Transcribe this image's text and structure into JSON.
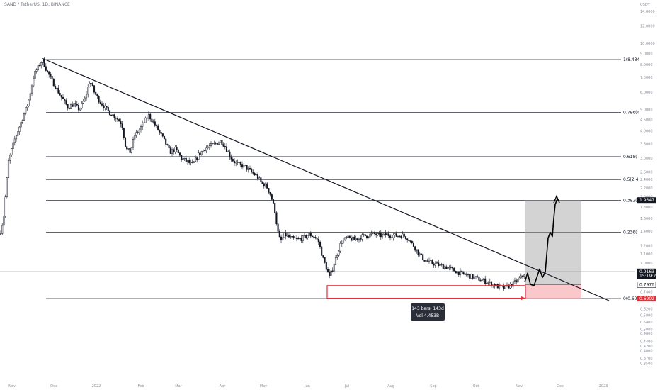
{
  "header": {
    "symbol": "SAND / TetherUS, 1D, BINANCE"
  },
  "axis": {
    "currency": "USDT"
  },
  "chart_data": {
    "type": "candlestick",
    "symbol": "SAND / TetherUS",
    "interval": "1D",
    "exchange": "BINANCE",
    "scale": "log",
    "x_ticks": [
      "Nov",
      "Dec",
      "2022",
      "Feb",
      "Mar",
      "Apr",
      "May",
      "Jun",
      "Jul",
      "Aug",
      "Sep",
      "Oct",
      "Nov",
      "Dec",
      "2023"
    ],
    "y_ticks": [
      "14.0000",
      "12.0000",
      "10.0000",
      "9.0000",
      "8.0000",
      "7.0000",
      "6.0000",
      "5.0000",
      "4.5000",
      "4.0000",
      "3.5000",
      "3.0000",
      "2.6000",
      "2.4000",
      "2.2000",
      "2.0000",
      "1.8000",
      "1.6000",
      "1.4000",
      "1.2000",
      "1.1000",
      "1.0000",
      "0.9000",
      "0.8000",
      "0.7400",
      "0.6800",
      "0.6200",
      "0.5800",
      "0.5400",
      "0.5000",
      "0.4800",
      "0.4400",
      "0.4200",
      "0.4000",
      "0.3700",
      "0.3500"
    ],
    "series": [
      {
        "name": "SAND/USDT",
        "price_path": [
          [
            0,
            1.35
          ],
          [
            5,
            1.6
          ],
          [
            12,
            2.9
          ],
          [
            20,
            3.6
          ],
          [
            30,
            4.4
          ],
          [
            40,
            5.4
          ],
          [
            48,
            7.2
          ],
          [
            55,
            7.9
          ],
          [
            60,
            8.43
          ],
          [
            66,
            7.5
          ],
          [
            72,
            6.9
          ],
          [
            80,
            6.2
          ],
          [
            88,
            5.6
          ],
          [
            96,
            5.1
          ],
          [
            104,
            5.3
          ],
          [
            112,
            5.0
          ],
          [
            120,
            5.6
          ],
          [
            127,
            6.8
          ],
          [
            133,
            6.0
          ],
          [
            140,
            5.5
          ],
          [
            148,
            5.1
          ],
          [
            156,
            4.8
          ],
          [
            164,
            4.6
          ],
          [
            172,
            4.3
          ],
          [
            178,
            3.3
          ],
          [
            184,
            3.2
          ],
          [
            190,
            3.8
          ],
          [
            196,
            4.0
          ],
          [
            204,
            4.4
          ],
          [
            210,
            4.7
          ],
          [
            216,
            4.4
          ],
          [
            222,
            4.1
          ],
          [
            228,
            3.8
          ],
          [
            234,
            3.5
          ],
          [
            240,
            3.2
          ],
          [
            248,
            3.3
          ],
          [
            256,
            3.0
          ],
          [
            264,
            2.9
          ],
          [
            272,
            2.8
          ],
          [
            280,
            3.1
          ],
          [
            288,
            3.3
          ],
          [
            296,
            3.4
          ],
          [
            304,
            3.5
          ],
          [
            312,
            3.6
          ],
          [
            318,
            3.4
          ],
          [
            324,
            3.1
          ],
          [
            330,
            2.9
          ],
          [
            338,
            2.8
          ],
          [
            346,
            2.75
          ],
          [
            354,
            2.6
          ],
          [
            362,
            2.5
          ],
          [
            370,
            2.3
          ],
          [
            376,
            2.25
          ],
          [
            382,
            2.05
          ],
          [
            388,
            1.75
          ],
          [
            392,
            1.4
          ],
          [
            396,
            1.25
          ],
          [
            402,
            1.35
          ],
          [
            410,
            1.3
          ],
          [
            420,
            1.28
          ],
          [
            428,
            1.3
          ],
          [
            436,
            1.35
          ],
          [
            444,
            1.32
          ],
          [
            450,
            1.25
          ],
          [
            456,
            1.05
          ],
          [
            460,
            0.97
          ],
          [
            465,
            0.86
          ],
          [
            470,
            0.95
          ],
          [
            476,
            1.1
          ],
          [
            482,
            1.25
          ],
          [
            490,
            1.3
          ],
          [
            500,
            1.28
          ],
          [
            510,
            1.32
          ],
          [
            520,
            1.34
          ],
          [
            528,
            1.36
          ],
          [
            536,
            1.33
          ],
          [
            544,
            1.35
          ],
          [
            552,
            1.34
          ],
          [
            560,
            1.33
          ],
          [
            568,
            1.34
          ],
          [
            576,
            1.3
          ],
          [
            584,
            1.2
          ],
          [
            592,
            1.1
          ],
          [
            600,
            1.03
          ],
          [
            610,
            1.0
          ],
          [
            620,
            0.98
          ],
          [
            630,
            0.96
          ],
          [
            640,
            0.93
          ],
          [
            650,
            0.9
          ],
          [
            660,
            0.88
          ],
          [
            670,
            0.86
          ],
          [
            680,
            0.84
          ],
          [
            688,
            0.82
          ],
          [
            696,
            0.8
          ],
          [
            704,
            0.78
          ],
          [
            712,
            0.77
          ],
          [
            720,
            0.79
          ],
          [
            728,
            0.82
          ],
          [
            736,
            0.86
          ],
          [
            742,
            0.91
          ]
        ]
      }
    ],
    "fib_levels": [
      {
        "label": "1(8.434",
        "price": 8.434
      },
      {
        "label": "0.786(4",
        "price": 4.85
      },
      {
        "label": "0.618(",
        "price": 3.05
      },
      {
        "label": "0.5(2.4",
        "price": 2.4
      },
      {
        "label": "0.382(",
        "price": 1.93
      },
      {
        "label": "0.236(",
        "price": 1.38
      },
      {
        "label": "0(0.69",
        "price": 0.69
      }
    ],
    "price_tags": [
      {
        "label": "1.9347",
        "price": 1.9347,
        "style": "dark"
      },
      {
        "label": "0.9163",
        "price": 0.9163,
        "style": "dark"
      },
      {
        "label": "15:19:25",
        "price": 0.875,
        "style": "dark"
      },
      {
        "label": "0.7976",
        "price": 0.7976,
        "style": "outline"
      },
      {
        "label": "0.6902",
        "price": 0.6902,
        "style": "red"
      }
    ],
    "measure": {
      "bars": "143 bars, 143d",
      "vol": "Vol 4.453B"
    },
    "position": {
      "entry": 0.7976,
      "target": 1.9347,
      "stop": 0.6902
    }
  }
}
